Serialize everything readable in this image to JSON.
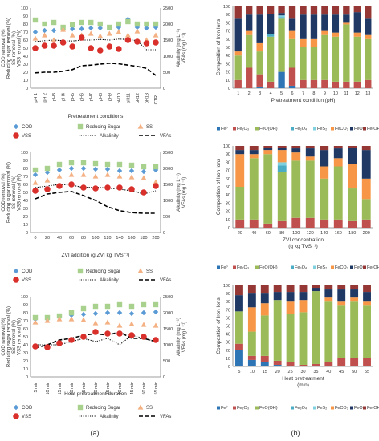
{
  "panel_labels": {
    "a": "(a)",
    "b": "(b)"
  },
  "colors": {
    "cod": "#5b9bd5",
    "rs": "#a9d18e",
    "ss": "#f4b183",
    "vss": "#d9302c",
    "line": "#000000",
    "axis": "#7f7f7f",
    "fe0": "#2e75b6",
    "fe2o3": "#c0504d",
    "feooh": "#9bbb59",
    "fe3o4": "#4bacc6",
    "fes2": "#7fd1e0",
    "feco3": "#f79646",
    "feo": "#1f3864",
    "feoh3": "#953735"
  },
  "chart_data": [
    {
      "id": "a1",
      "type": "scatter",
      "xlabel": "Pretreatment conditions",
      "ylabel": [
        "COD removal (%)",
        "Reducing sugar removal (%)",
        "SS removal (%)",
        "VSS removal (%)"
      ],
      "ylabel_right": [
        "Alkalinity (mg L⁻¹)",
        "VFAs (mg L⁻¹)"
      ],
      "categories": [
        "pH 1",
        "pH 2",
        "pH3",
        "pH4",
        "pH5",
        "pH6",
        "pH7",
        "pH8",
        "pH9",
        "pH10",
        "pH11",
        "pH12",
        "pH13",
        "CTRL"
      ],
      "ylim": [
        0,
        100
      ],
      "yticks": [
        0,
        10,
        20,
        30,
        40,
        50,
        60,
        70,
        80,
        90,
        100
      ],
      "y2lim": [
        0,
        2500
      ],
      "y2ticks": [
        0,
        500,
        1000,
        1500,
        2000,
        2500
      ],
      "series": [
        {
          "name": "COD",
          "key": "cod",
          "kind": "diamond",
          "values": [
            70,
            72,
            72,
            73,
            74,
            74,
            75,
            75,
            75,
            76,
            86,
            76,
            75,
            76
          ]
        },
        {
          "name": "Reducing Sugar",
          "key": "rs",
          "kind": "square",
          "values": [
            85,
            80,
            82,
            76,
            79,
            82,
            82,
            80,
            76,
            80,
            83,
            80,
            80,
            80
          ]
        },
        {
          "name": "SS",
          "key": "ss",
          "kind": "triangle",
          "values": [
            62,
            66,
            60,
            73,
            66,
            66,
            68,
            65,
            68,
            70,
            66,
            71,
            60,
            66
          ]
        },
        {
          "name": "VSS",
          "key": "vss",
          "kind": "circle",
          "values": [
            50,
            53,
            53,
            57,
            52,
            63,
            50,
            47,
            52,
            49,
            60,
            58,
            56,
            57
          ]
        },
        {
          "name": "Alkalinity",
          "key": "line",
          "kind": "dotted",
          "axis": "right",
          "values": [
            1450,
            1480,
            1500,
            1480,
            1470,
            1500,
            1500,
            1520,
            1500,
            1530,
            1520,
            1480,
            1200,
            1200
          ]
        },
        {
          "name": "VFAs",
          "key": "line",
          "kind": "dashed",
          "axis": "right",
          "values": [
            480,
            500,
            500,
            530,
            580,
            700,
            720,
            750,
            780,
            760,
            720,
            680,
            620,
            400
          ]
        }
      ]
    },
    {
      "id": "a2",
      "type": "scatter",
      "xlabel": "ZVI addition (g ZVI kg TVS⁻¹)",
      "ylabel": [
        "COD removal (%)",
        "Reducing sugar removal (%)",
        "SS removal (%)",
        "VSS removal (%)"
      ],
      "ylabel_right": [
        "Alkalinity (mg L⁻¹)",
        "VFAs (mg L⁻¹)"
      ],
      "x": [
        0,
        20,
        40,
        60,
        80,
        100,
        120,
        140,
        160,
        180,
        200
      ],
      "xlim": [
        0,
        200
      ],
      "xticks": [
        0,
        20,
        40,
        60,
        80,
        100,
        120,
        140,
        160,
        180,
        200
      ],
      "ylim": [
        0,
        100
      ],
      "yticks": [
        0,
        10,
        20,
        30,
        40,
        50,
        60,
        70,
        80,
        90,
        100
      ],
      "y2lim": [
        0,
        2500
      ],
      "y2ticks": [
        0,
        500,
        1000,
        1500,
        2000,
        2500
      ],
      "series": [
        {
          "name": "COD",
          "key": "cod",
          "kind": "diamond",
          "values": [
            72,
            75,
            78,
            80,
            80,
            79,
            79,
            77,
            77,
            76,
            78
          ]
        },
        {
          "name": "Reducing Sugar",
          "key": "rs",
          "kind": "square",
          "values": [
            78,
            80,
            85,
            87,
            87,
            86,
            85,
            85,
            84,
            82,
            82
          ]
        },
        {
          "name": "SS",
          "key": "ss",
          "kind": "triangle",
          "values": [
            62,
            65,
            70,
            72,
            72,
            70,
            72,
            70,
            69,
            68,
            63
          ]
        },
        {
          "name": "VSS",
          "key": "vss",
          "kind": "circle",
          "values": [
            52,
            54,
            58,
            60,
            56,
            55,
            56,
            56,
            54,
            50,
            58
          ]
        },
        {
          "name": "Alkalinity",
          "key": "line",
          "kind": "dotted",
          "axis": "right",
          "values": [
            1400,
            1450,
            1500,
            1480,
            1400,
            1420,
            1380,
            1350,
            1300,
            1200,
            1300
          ]
        },
        {
          "name": "VFAs",
          "key": "line",
          "kind": "dashed",
          "axis": "right",
          "values": [
            1050,
            1200,
            1250,
            1280,
            1150,
            1000,
            800,
            680,
            620,
            600,
            600
          ]
        }
      ]
    },
    {
      "id": "a3",
      "type": "scatter",
      "xlabel": "Heat pretreatment duration",
      "ylabel": [
        "COD removal (%)",
        "Reducing sugar removal (%)",
        "SS removal (%)",
        "VSS removal (%)"
      ],
      "ylabel_right": [
        "Alkalinity (mg L⁻¹)",
        "VFAs (mg L⁻¹)"
      ],
      "categories": [
        "5 min",
        "10 min",
        "15 min",
        "20 min",
        "25 min",
        "30 min",
        "35 min",
        "40 min",
        "45 min",
        "50 min",
        "55 min"
      ],
      "ylim": [
        0,
        100
      ],
      "yticks": [
        0,
        10,
        20,
        30,
        40,
        50,
        60,
        70,
        80,
        90,
        100
      ],
      "y2lim": [
        0,
        2500
      ],
      "y2ticks": [
        0,
        500,
        1000,
        1500,
        2000,
        2500
      ],
      "series": [
        {
          "name": "COD",
          "key": "cod",
          "kind": "diamond",
          "values": [
            72,
            72,
            75,
            77,
            78,
            79,
            80,
            80,
            79,
            80,
            81
          ]
        },
        {
          "name": "Reducing Sugar",
          "key": "rs",
          "kind": "square",
          "values": [
            74,
            74,
            76,
            80,
            85,
            88,
            88,
            90,
            88,
            90,
            90
          ]
        },
        {
          "name": "SS",
          "key": "ss",
          "kind": "triangle",
          "values": [
            68,
            70,
            72,
            72,
            71,
            67,
            68,
            64,
            66,
            65,
            64
          ]
        },
        {
          "name": "VSS",
          "key": "vss",
          "kind": "circle",
          "values": [
            38,
            37,
            42,
            46,
            50,
            56,
            54,
            54,
            52,
            50,
            46
          ]
        },
        {
          "name": "Alkalinity",
          "key": "line",
          "kind": "dotted",
          "axis": "right",
          "values": [
            1000,
            1000,
            1000,
            1100,
            1200,
            1100,
            1200,
            1000,
            1300,
            1200,
            1100
          ]
        },
        {
          "name": "VFAs",
          "key": "line",
          "kind": "dashed",
          "axis": "right",
          "values": [
            900,
            1000,
            1150,
            1200,
            1300,
            1350,
            1300,
            1400,
            1200,
            1200,
            1100
          ]
        }
      ]
    },
    {
      "id": "b1",
      "type": "bar",
      "stacked": true,
      "xlabel": "Pretreatment condition (pH)",
      "ylabel": "Composition of Iron Ions",
      "categories": [
        "1",
        "2",
        "3",
        "4",
        "5",
        "6",
        "7",
        "8",
        "9",
        "10",
        "11",
        "12",
        "13"
      ],
      "ylim": [
        0,
        100
      ],
      "yticks": [
        0,
        10,
        20,
        30,
        40,
        50,
        60,
        70,
        80,
        90,
        100
      ],
      "series": [
        {
          "name": "Fe⁰",
          "key": "fe0",
          "values": [
            0,
            0,
            2,
            0,
            20,
            3,
            0,
            0,
            0,
            0,
            0,
            0,
            0
          ]
        },
        {
          "name": "Fe₂O₃",
          "key": "fe2o3",
          "values": [
            10,
            25,
            15,
            8,
            0,
            22,
            10,
            10,
            10,
            8,
            8,
            8,
            10
          ]
        },
        {
          "name": "FeO(OH)",
          "key": "feooh",
          "values": [
            30,
            40,
            28,
            55,
            65,
            35,
            40,
            40,
            55,
            55,
            70,
            55,
            50
          ]
        },
        {
          "name": "Fe₃O₄",
          "key": "fe3o4",
          "values": [
            0,
            0,
            0,
            3,
            2,
            0,
            0,
            0,
            0,
            0,
            0,
            0,
            0
          ]
        },
        {
          "name": "FeS₂",
          "key": "fes2",
          "values": [
            0,
            0,
            0,
            0,
            2,
            0,
            0,
            0,
            0,
            0,
            0,
            0,
            0
          ]
        },
        {
          "name": "FeCO₃",
          "key": "feco3",
          "values": [
            5,
            5,
            10,
            0,
            0,
            10,
            10,
            10,
            5,
            5,
            2,
            5,
            5
          ]
        },
        {
          "name": "FeO",
          "key": "feo",
          "values": [
            40,
            20,
            35,
            25,
            3,
            15,
            30,
            30,
            20,
            22,
            10,
            25,
            20
          ]
        },
        {
          "name": "Fe(OH)₃",
          "key": "feoh3",
          "values": [
            15,
            10,
            10,
            9,
            8,
            15,
            10,
            10,
            10,
            10,
            10,
            7,
            15
          ]
        }
      ]
    },
    {
      "id": "b2",
      "type": "bar",
      "stacked": true,
      "xlabel": "ZVI concentration",
      "xlabel2": "(g kg TVS⁻¹)",
      "ylabel": "Composition of Iron Ions",
      "categories": [
        "20",
        "40",
        "60",
        "80",
        "100",
        "120",
        "140",
        "160",
        "180",
        "200"
      ],
      "ylim": [
        0,
        100
      ],
      "yticks": [
        0,
        10,
        20,
        30,
        40,
        50,
        60,
        70,
        80,
        90,
        100
      ],
      "series": [
        {
          "name": "Fe⁰",
          "key": "fe0",
          "values": [
            0,
            0,
            0,
            0,
            0,
            0,
            0,
            0,
            0,
            0
          ]
        },
        {
          "name": "Fe₂O₃",
          "key": "fe2o3",
          "values": [
            10,
            10,
            5,
            8,
            12,
            12,
            10,
            10,
            8,
            10
          ]
        },
        {
          "name": "FeO(OH)",
          "key": "feooh",
          "values": [
            40,
            75,
            85,
            60,
            70,
            70,
            50,
            65,
            40,
            25
          ]
        },
        {
          "name": "Fe₃O₄",
          "key": "fe3o4",
          "values": [
            0,
            0,
            0,
            8,
            0,
            0,
            0,
            0,
            0,
            0
          ]
        },
        {
          "name": "FeS₂",
          "key": "fes2",
          "values": [
            0,
            0,
            0,
            4,
            0,
            0,
            0,
            0,
            0,
            0
          ]
        },
        {
          "name": "FeCO₃",
          "key": "feco3",
          "values": [
            40,
            5,
            5,
            15,
            10,
            5,
            15,
            10,
            30,
            25
          ]
        },
        {
          "name": "FeO",
          "key": "feo",
          "values": [
            5,
            5,
            3,
            3,
            5,
            10,
            20,
            12,
            20,
            35
          ]
        },
        {
          "name": "Fe(OH)₃",
          "key": "feoh3",
          "values": [
            5,
            5,
            2,
            2,
            3,
            3,
            5,
            3,
            2,
            5
          ]
        }
      ]
    },
    {
      "id": "b3",
      "type": "bar",
      "stacked": true,
      "xlabel": "Heat pretreatment",
      "xlabel2": "(min)",
      "ylabel": "Composition of Iron Ions",
      "categories": [
        "5",
        "10",
        "15",
        "20",
        "25",
        "30",
        "35",
        "40",
        "45",
        "50",
        "55"
      ],
      "ylim": [
        0,
        100
      ],
      "yticks": [
        0,
        10,
        20,
        30,
        40,
        50,
        60,
        70,
        80,
        90,
        100
      ],
      "series": [
        {
          "name": "Fe⁰",
          "key": "fe0",
          "values": [
            20,
            8,
            5,
            2,
            0,
            0,
            0,
            0,
            0,
            0,
            0
          ]
        },
        {
          "name": "Fe₂O₃",
          "key": "fe2o3",
          "values": [
            8,
            5,
            8,
            5,
            5,
            2,
            3,
            5,
            10,
            10,
            10
          ]
        },
        {
          "name": "FeO(OH)",
          "key": "feooh",
          "values": [
            40,
            30,
            50,
            75,
            60,
            65,
            90,
            75,
            65,
            70,
            65
          ]
        },
        {
          "name": "Fe₃O₄",
          "key": "fe3o4",
          "values": [
            0,
            0,
            0,
            0,
            0,
            0,
            0,
            0,
            0,
            0,
            0
          ]
        },
        {
          "name": "FeS₂",
          "key": "fes2",
          "values": [
            0,
            0,
            0,
            0,
            0,
            0,
            0,
            0,
            0,
            0,
            0
          ]
        },
        {
          "name": "FeCO₃",
          "key": "feco3",
          "values": [
            0,
            30,
            15,
            0,
            15,
            15,
            0,
            5,
            5,
            5,
            5
          ]
        },
        {
          "name": "FeO",
          "key": "feo",
          "values": [
            20,
            17,
            12,
            10,
            12,
            10,
            4,
            10,
            15,
            10,
            12
          ]
        },
        {
          "name": "Fe(OH)₃",
          "key": "feoh3",
          "values": [
            12,
            10,
            10,
            8,
            8,
            8,
            3,
            5,
            5,
            5,
            8
          ]
        }
      ]
    }
  ]
}
